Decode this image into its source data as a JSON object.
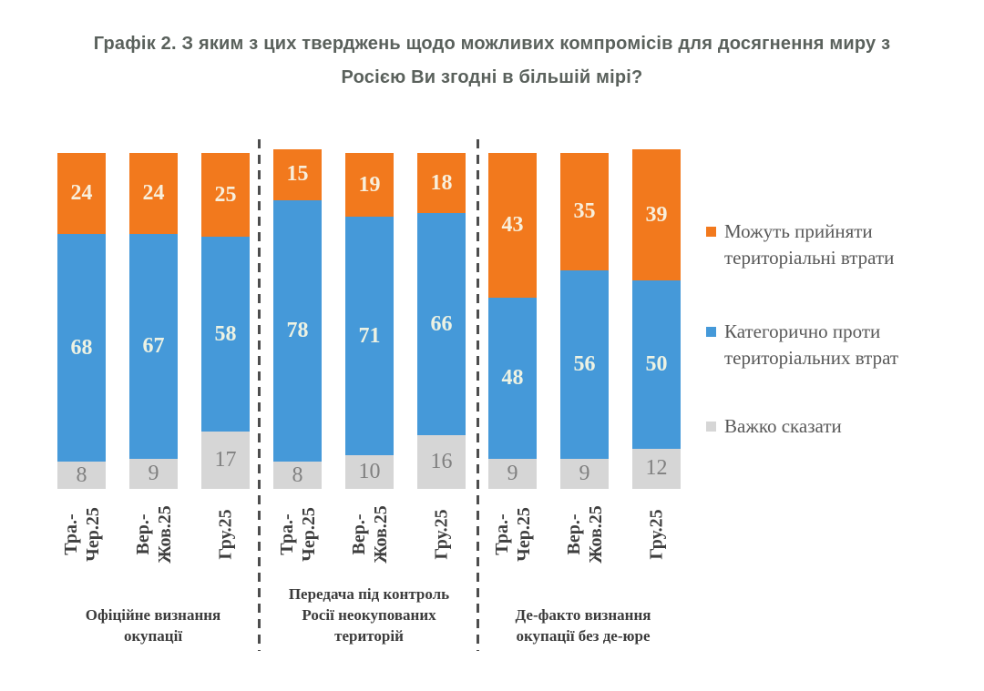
{
  "title": {
    "line1": "Графік 2. З яким з цих тверджень щодо можливих компромісів для досягнення миру з",
    "line2": "Росією Ви згодні в більшій мірі?"
  },
  "legend": {
    "items": [
      {
        "key": "accept",
        "label": "Можуть прийняти територіальні втрати"
      },
      {
        "key": "against",
        "label": "Категорично проти територіальних втрат"
      },
      {
        "key": "hard_to_say",
        "label": "Важко сказати"
      }
    ]
  },
  "chart_data": {
    "type": "bar",
    "stacked": true,
    "units": "percent",
    "title": "Графік 2. З яким з цих тверджень щодо можливих компромісів для досягнення миру з Росією Ви згодні в більшій мірі?",
    "ylim": [
      0,
      100
    ],
    "grid": false,
    "legend_position": "right",
    "stack_order_bottom_to_top": [
      "hard_to_say",
      "against",
      "accept"
    ],
    "series_meta": {
      "accept": {
        "label": "Можуть прийняти територіальні втрати",
        "color": "#f2791d",
        "value_label_color": "#f8efdc"
      },
      "against": {
        "label": "Категорично проти територіальних втрат",
        "color": "#4599d9",
        "value_label_color": "#edf2e3"
      },
      "hard_to_say": {
        "label": "Важко сказати",
        "color": "#d6d6d6",
        "value_label_color": "#808080"
      }
    },
    "categories": [
      "Тра.-\nЧер.25",
      "Вер.-\nЖов.25",
      "Гру.25"
    ],
    "groups": [
      {
        "label": "Офіційне визнання\nокупації",
        "bars": [
          {
            "category": "Тра.-Чер.25",
            "hard_to_say": 8,
            "against": 68,
            "accept": 24
          },
          {
            "category": "Вер.-Жов.25",
            "hard_to_say": 9,
            "against": 67,
            "accept": 24
          },
          {
            "category": "Гру.25",
            "hard_to_say": 17,
            "against": 58,
            "accept": 25
          }
        ]
      },
      {
        "label": "Передача під контроль\nРосії неокупованих\nтериторій",
        "bars": [
          {
            "category": "Тра.-Чер.25",
            "hard_to_say": 8,
            "against": 78,
            "accept": 15
          },
          {
            "category": "Вер.-Жов.25",
            "hard_to_say": 10,
            "against": 71,
            "accept": 19
          },
          {
            "category": "Гру.25",
            "hard_to_say": 16,
            "against": 66,
            "accept": 18
          }
        ]
      },
      {
        "label": "Де-факто визнання\nокупації без де-юре",
        "bars": [
          {
            "category": "Тра.-Чер.25",
            "hard_to_say": 9,
            "against": 48,
            "accept": 43
          },
          {
            "category": "Вер.-Жов.25",
            "hard_to_say": 9,
            "against": 56,
            "accept": 35
          },
          {
            "category": "Гру.25",
            "hard_to_say": 12,
            "against": 50,
            "accept": 39
          }
        ]
      }
    ]
  }
}
